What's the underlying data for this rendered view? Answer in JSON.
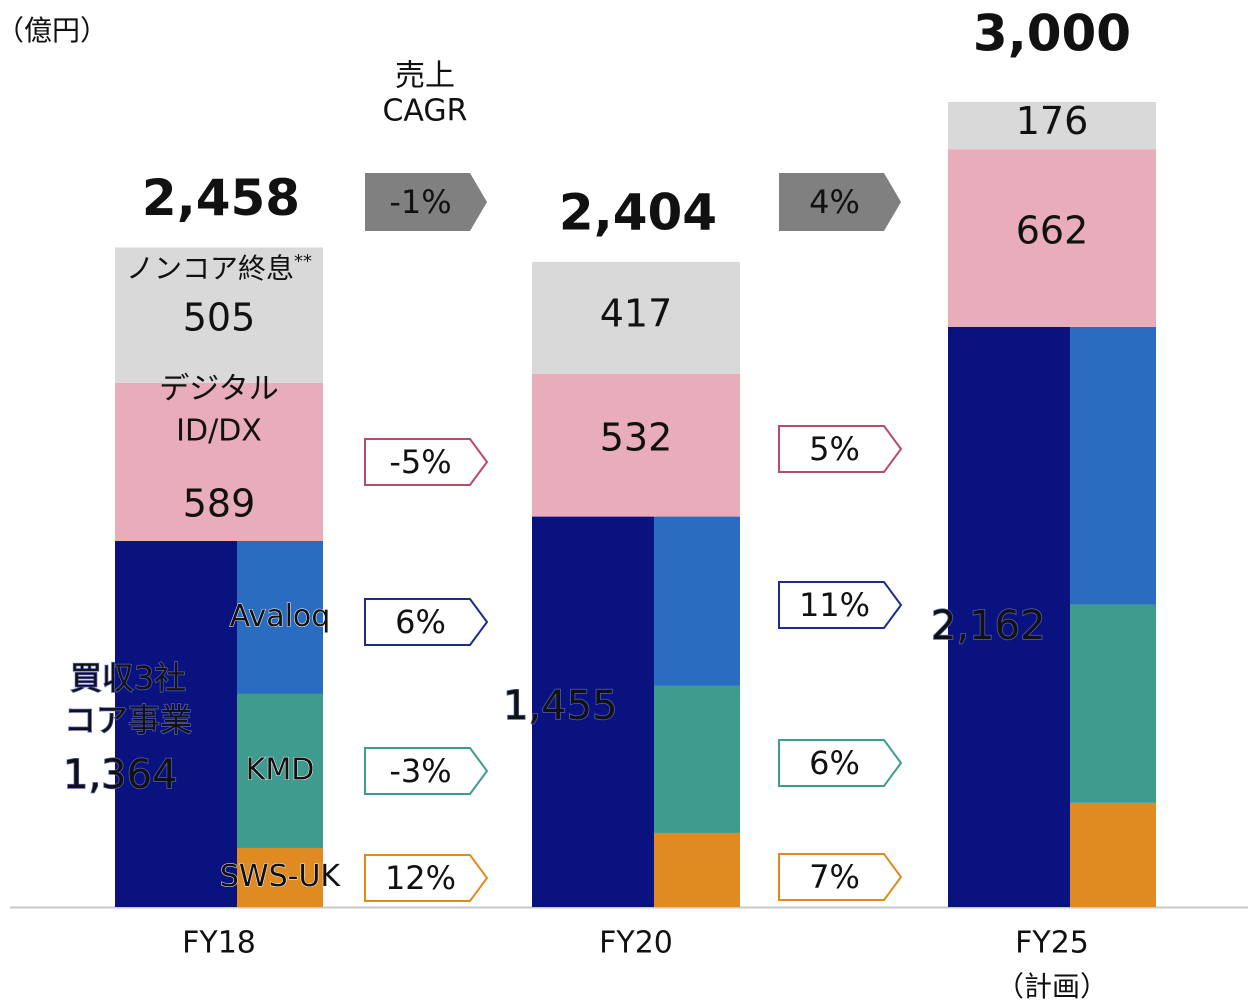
{
  "chart_data": {
    "type": "bar",
    "unit": "（億円）",
    "categories": [
      "FY18",
      "FY20",
      "FY25"
    ],
    "category_notes": [
      null,
      null,
      "（計画）"
    ],
    "ylim": [
      0,
      3000
    ],
    "totals": [
      2458,
      2404,
      3000
    ],
    "total_labels": [
      "2,458",
      "2,404",
      "3,000"
    ],
    "cagr_title": [
      "売上",
      "CAGR"
    ],
    "total_cagr": [
      -1,
      4
    ],
    "total_cagr_labels": [
      "-1%",
      "4%"
    ],
    "total_cagr_color": "#808080",
    "core": {
      "name": [
        "買収3社",
        "コア事業"
      ],
      "color": "#0a1280",
      "values": [
        1364,
        1455,
        2162
      ],
      "value_labels": [
        "1,364",
        "1,455",
        "2,162"
      ],
      "components": [
        {
          "name": "SWS-UK",
          "color": "#e08a22",
          "values": [
            220,
            276,
            388
          ],
          "cagr": [
            12,
            7
          ],
          "cagr_labels": [
            "12%",
            "7%"
          ]
        },
        {
          "name": "KMD",
          "color": "#3f9b8e",
          "values": [
            574,
            548,
            739
          ],
          "cagr": [
            -3,
            6
          ],
          "cagr_labels": [
            "-3%",
            "6%"
          ]
        },
        {
          "name": "Avaloq",
          "color": "#2a6dc0",
          "values": [
            570,
            631,
            1035
          ],
          "cagr": [
            6,
            11
          ],
          "cagr_labels": [
            "6%",
            "11%"
          ],
          "outline": "#1e2a8c"
        }
      ]
    },
    "digital": {
      "name": [
        "デジタル",
        "ID/DX"
      ],
      "color": "#e8acba",
      "outline": "#b84a6a",
      "values": [
        589,
        532,
        662
      ],
      "cagr": [
        -5,
        5
      ],
      "cagr_labels": [
        "-5%",
        "5%"
      ]
    },
    "noncore": {
      "name": "ノンコア終息",
      "mark": "**",
      "color": "#d9d9d9",
      "values": [
        505,
        417,
        176
      ]
    }
  }
}
